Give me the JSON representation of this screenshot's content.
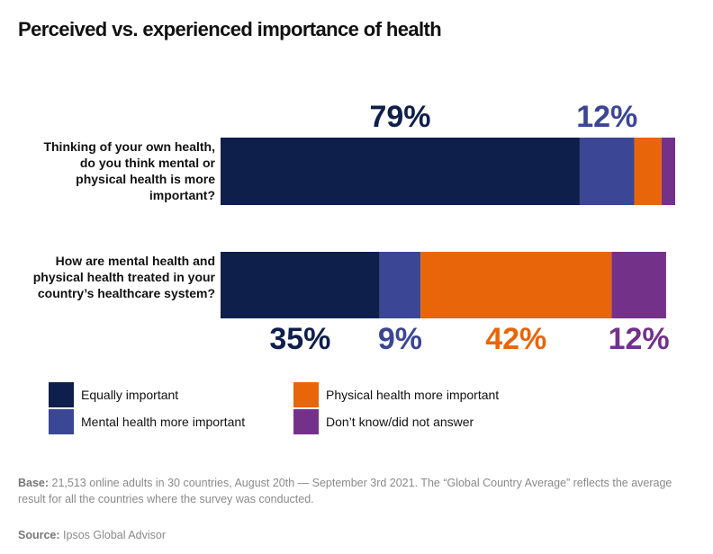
{
  "chart_data": {
    "type": "stacked-bar-horizontal",
    "title": "Perceived vs. experienced importance of health",
    "categories": [
      "Thinking of your own health, do you think mental or physical health is more important?",
      "How are mental health and physical health treated in your country’s healthcare system?"
    ],
    "series": [
      {
        "name": "Equally important",
        "color": "#0f1f4b",
        "values": [
          79,
          35
        ],
        "value_labels": [
          "79%",
          "35%"
        ]
      },
      {
        "name": "Mental health more important",
        "color": "#3b4694",
        "values": [
          12,
          9
        ],
        "value_labels": [
          "12%",
          "9%"
        ]
      },
      {
        "name": "Physical health more important",
        "color": "#e8650a",
        "values": [
          6,
          42
        ],
        "value_labels": [
          null,
          "42%"
        ]
      },
      {
        "name": "Don’t know/did not answer",
        "color": "#74318a",
        "values": [
          3,
          12
        ],
        "value_labels": [
          null,
          "12%"
        ]
      }
    ],
    "legend_position": "bottom",
    "base_label": "Base:",
    "base_text": "21,513 online adults in 30 countries, August 20th — September 3rd 2021. The “Global Country Average” reflects the average result for all the countries where the survey was conducted.",
    "source_label": "Source:",
    "source_text": "Ipsos Global Advisor"
  }
}
